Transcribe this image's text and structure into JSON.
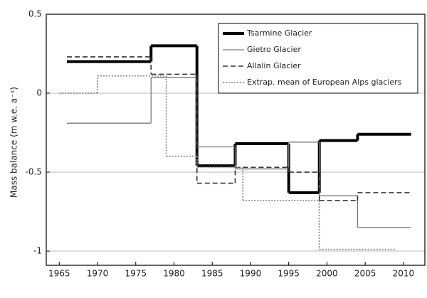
{
  "chart_data": {
    "type": "step",
    "ylabel": "Mass balance (m w.e. a⁻¹)",
    "xlim": [
      1963.3,
      2012.8
    ],
    "xticks": [
      1965,
      1970,
      1975,
      1980,
      1985,
      1990,
      1995,
      2000,
      2005,
      2010
    ],
    "ylim": [
      -1.09,
      0.5
    ],
    "yticks": [
      -1,
      -0.5,
      0,
      0.5
    ],
    "grid": true,
    "legend": "upper right",
    "series": [
      {
        "name": "Tsarmine Glacier",
        "color": "#000000",
        "style": "thick",
        "bins": [
          1966,
          1977,
          1983,
          1988,
          1995,
          1999,
          2004,
          2011
        ],
        "values": [
          0.2,
          0.3,
          -0.46,
          -0.32,
          -0.63,
          -0.3,
          -0.26
        ]
      },
      {
        "name": "Gietro Glacier",
        "color": "#777777",
        "style": "solid",
        "bins": [
          1966,
          1977,
          1983,
          1988,
          1995,
          1999,
          2004,
          2011
        ],
        "values": [
          -0.19,
          0.1,
          -0.34,
          -0.48,
          -0.31,
          -0.65,
          -0.85
        ]
      },
      {
        "name": "Allalin Glacier",
        "color": "#333333",
        "style": "dashed",
        "bins": [
          1966,
          1977,
          1983,
          1988,
          1995,
          1999,
          2004,
          2011
        ],
        "values": [
          0.23,
          0.12,
          -0.57,
          -0.47,
          -0.5,
          -0.68,
          -0.63
        ]
      },
      {
        "name": "Extrap. mean of European Alps glaciers",
        "color": "#999999",
        "style": "dotted",
        "bins": [
          1965,
          1970,
          1979,
          1983,
          1989,
          1999,
          2009
        ],
        "values": [
          0,
          0.11,
          -0.4,
          -0.47,
          -0.68,
          -0.99
        ]
      }
    ]
  }
}
